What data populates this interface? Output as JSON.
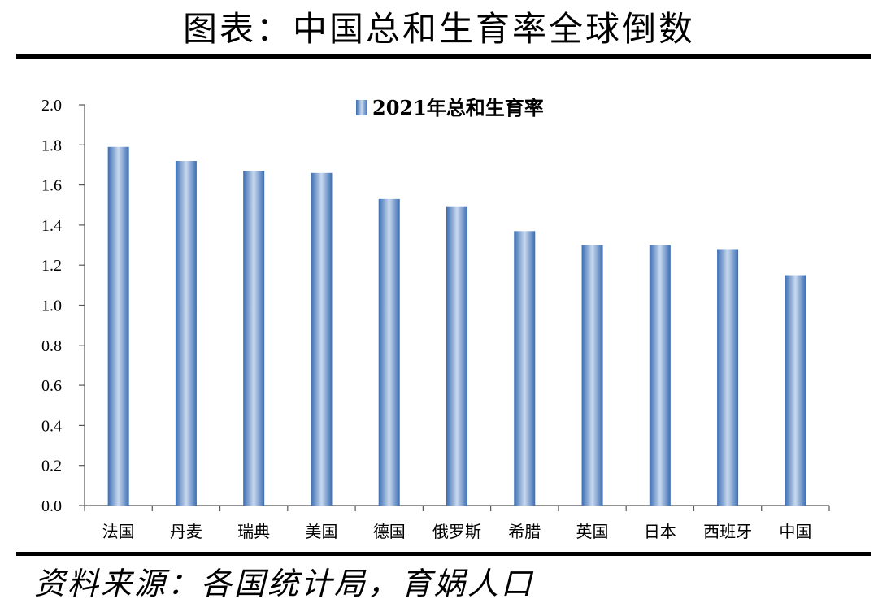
{
  "header": {
    "title": "图表：中国总和生育率全球倒数"
  },
  "footer": {
    "source": "资料来源：各国统计局，育娲人口"
  },
  "chart_data": {
    "type": "bar",
    "categories": [
      "法国",
      "丹麦",
      "瑞典",
      "美国",
      "德国",
      "俄罗斯",
      "希腊",
      "英国",
      "日本",
      "西班牙",
      "中国"
    ],
    "series": [
      {
        "name": "2021年总和生育率",
        "values": [
          1.79,
          1.72,
          1.67,
          1.66,
          1.53,
          1.49,
          1.37,
          1.3,
          1.3,
          1.28,
          1.15
        ]
      }
    ],
    "ylim": [
      0,
      2.0
    ],
    "yticks": [
      "0.0",
      "0.2",
      "0.4",
      "0.6",
      "0.8",
      "1.0",
      "1.2",
      "1.4",
      "1.6",
      "1.8",
      "2.0"
    ],
    "grid": false,
    "legend_position": "top-center",
    "colors": {
      "bar_edge": "#3b6db3",
      "bar_center": "#c9d9ee"
    }
  }
}
